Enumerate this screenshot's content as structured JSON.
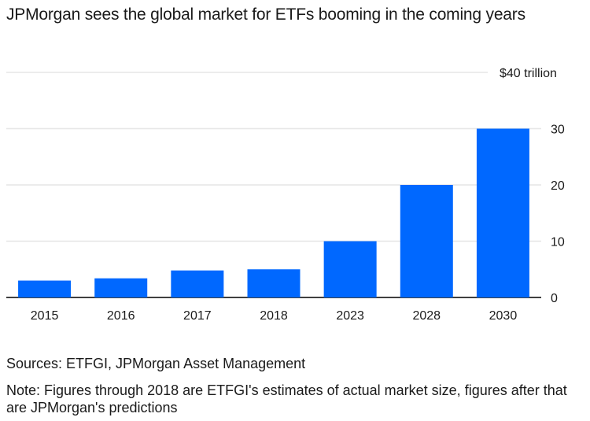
{
  "header": {
    "title": "JPMorgan sees the global market for ETFs booming in the coming years"
  },
  "footer": {
    "sources": "Sources: ETFGI, JPMorgan Asset Management",
    "note": "Note: Figures through 2018 are ETFGI's estimates of actual market size, figures after that are JPMorgan's predictions"
  },
  "colors": {
    "bar": "#0068ff",
    "grid": "#e6e6e6",
    "axis": "#000000"
  },
  "chart_data": {
    "type": "bar",
    "categories": [
      "2015",
      "2016",
      "2017",
      "2018",
      "2023",
      "2028",
      "2030"
    ],
    "values": [
      3.0,
      3.4,
      4.8,
      5.0,
      10,
      20,
      30
    ],
    "ylim": [
      0,
      40
    ],
    "yticks": [
      0,
      10,
      20,
      30,
      40
    ],
    "ytick_labels": [
      "0",
      "10",
      "20",
      "30",
      "$40 trillion"
    ],
    "ylabel": "",
    "xlabel": "",
    "grid": true
  }
}
